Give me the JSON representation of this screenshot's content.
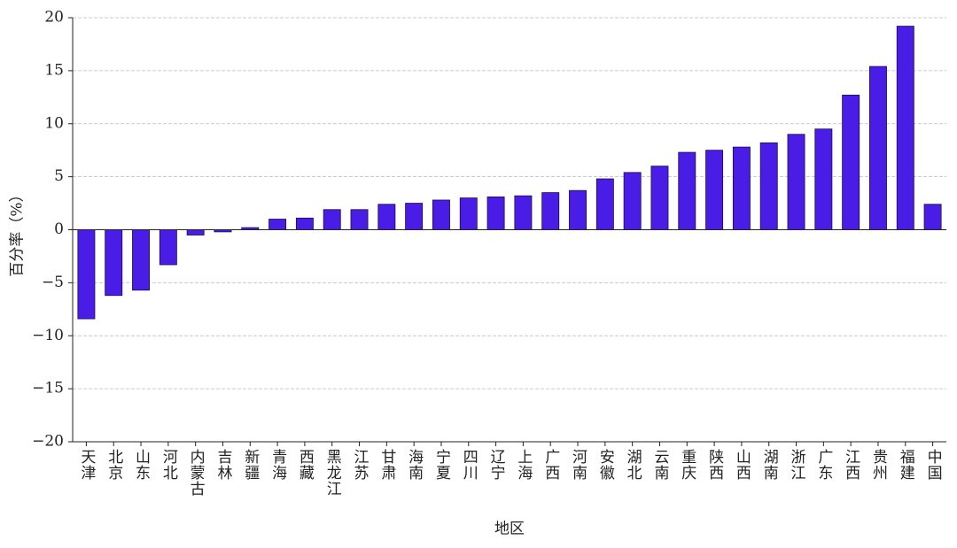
{
  "chart_data": {
    "type": "bar",
    "categories": [
      "天津",
      "北京",
      "山东",
      "河北",
      "内蒙古",
      "吉林",
      "新疆",
      "青海",
      "西藏",
      "黑龙江",
      "江苏",
      "甘肃",
      "海南",
      "宁夏",
      "四川",
      "辽宁",
      "上海",
      "广西",
      "河南",
      "安徽",
      "湖北",
      "云南",
      "重庆",
      "陕西",
      "山西",
      "湖南",
      "浙江",
      "广东",
      "江西",
      "贵州",
      "福建",
      "中国"
    ],
    "values": [
      -8.4,
      -6.2,
      -5.7,
      -3.3,
      -0.5,
      -0.2,
      0.2,
      1.0,
      1.1,
      1.9,
      1.9,
      2.4,
      2.5,
      2.8,
      3.0,
      3.1,
      3.2,
      3.5,
      3.7,
      4.8,
      5.4,
      6.0,
      7.3,
      7.5,
      7.8,
      8.2,
      9.0,
      9.5,
      12.7,
      15.4,
      19.2,
      2.4
    ],
    "color": "#4a1de6",
    "ylim": [
      -20,
      20
    ],
    "yticks": [
      {
        "value": -20,
        "label": "−20"
      },
      {
        "value": -15,
        "label": "−15"
      },
      {
        "value": -10,
        "label": "−10"
      },
      {
        "value": -5,
        "label": "−5"
      },
      0,
      5,
      10,
      15,
      20
    ],
    "grid": true,
    "x_label": "地区",
    "y_label": "百分率（%）"
  }
}
